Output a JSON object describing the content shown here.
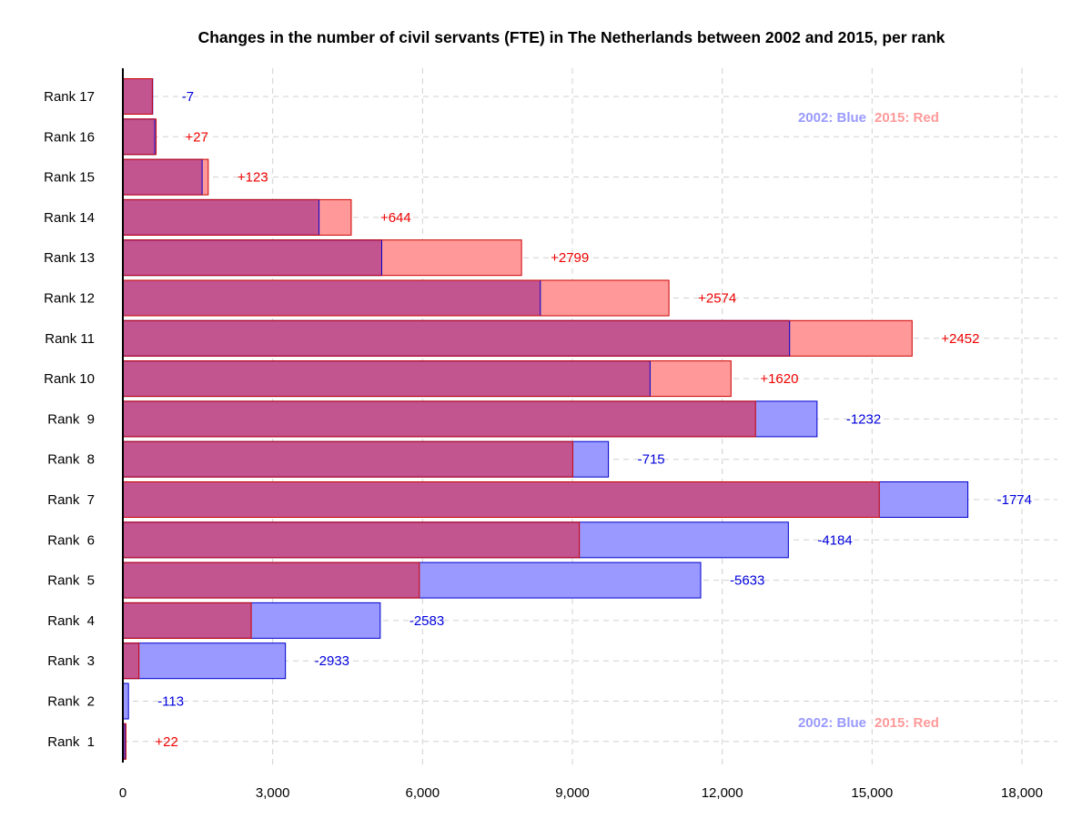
{
  "chart_data": {
    "type": "bar",
    "orientation": "horizontal",
    "title": "Changes in the number of civil servants (FTE) in The Netherlands between 2002 and 2015, per rank",
    "categories": [
      "Rank  1",
      "Rank  2",
      "Rank  3",
      "Rank  4",
      "Rank  5",
      "Rank  6",
      "Rank  7",
      "Rank  8",
      "Rank  9",
      "Rank 10",
      "Rank 11",
      "Rank 12",
      "Rank 13",
      "Rank 14",
      "Rank 15",
      "Rank 16",
      "Rank 17"
    ],
    "series": [
      {
        "name": "2002: Blue",
        "color": "#9999ff",
        "values": [
          40,
          113,
          3255,
          5153,
          11569,
          13324,
          16918,
          9722,
          13898,
          10556,
          13349,
          8359,
          5183,
          3928,
          1587,
          639,
          597
        ]
      },
      {
        "name": "2015: Red",
        "color": "#ff9999",
        "values": [
          62,
          0,
          322,
          2570,
          5936,
          9140,
          15144,
          9007,
          12666,
          12176,
          15801,
          10933,
          7982,
          4572,
          1710,
          666,
          590
        ]
      }
    ],
    "differences": [
      "+22",
      "-113",
      "-2933",
      "-2583",
      "-5633",
      "-4184",
      "-1774",
      "-715",
      "-1232",
      "+1620",
      "+2452",
      "+2574",
      "+2799",
      "+644",
      "+123",
      "+27",
      "-7"
    ],
    "overlap_color": "#c2548f",
    "positive_color": "#ee0000",
    "negative_color": "#0000dd",
    "x_ticks": [
      "0",
      "3,000",
      "6,000",
      "9,000",
      "12,000",
      "15,000",
      "18,000"
    ],
    "x_tick_values": [
      0,
      3000,
      6000,
      9000,
      12000,
      15000,
      18000
    ],
    "xlim": [
      0,
      18000
    ],
    "grid": true,
    "legend": {
      "blue_label": "2002: Blue",
      "red_label": "2015: Red",
      "placement": "top-right and bottom-right"
    }
  }
}
